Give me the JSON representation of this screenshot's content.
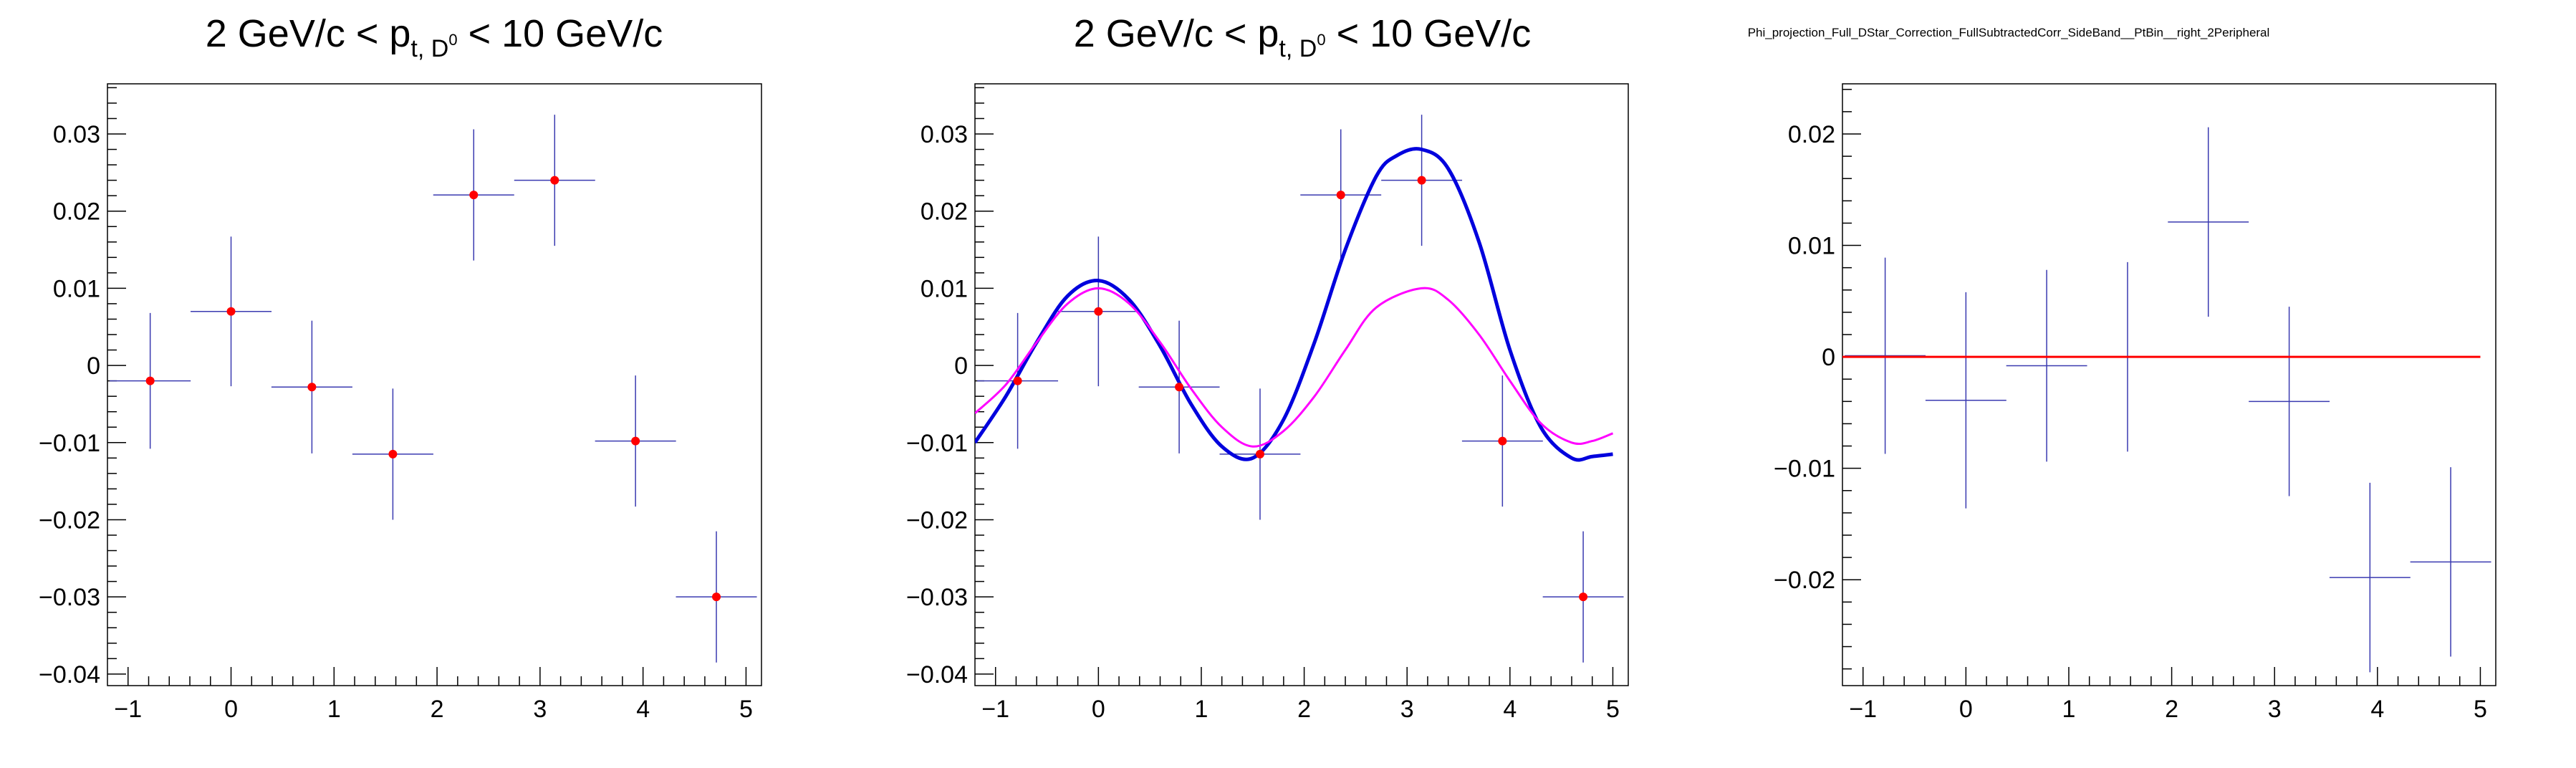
{
  "chart_data": [
    {
      "type": "scatter",
      "title": {
        "pre": "2 GeV/c < p",
        "sub": "t, D",
        "sup": "0",
        "post": " < 10 GeV/c"
      },
      "xlabel": "",
      "ylabel": "",
      "xlim": [
        -1.2,
        5.15
      ],
      "ylim": [
        -0.0415,
        0.0365
      ],
      "xticks": [
        -1,
        0,
        1,
        2,
        3,
        4,
        5
      ],
      "xtick_labels": [
        "−1",
        "0",
        "1",
        "2",
        "3",
        "4",
        "5"
      ],
      "yticks": [
        -0.04,
        -0.03,
        -0.02,
        -0.01,
        0,
        0.01,
        0.02,
        0.03
      ],
      "ytick_labels": [
        "−0.04",
        "−0.03",
        "−0.02",
        "−0.01",
        "0",
        "0.01",
        "0.02",
        "0.03"
      ],
      "grid": false,
      "marker_color": "#ff0000",
      "error_color": "#3a3ab0",
      "points": [
        {
          "x": -0.785,
          "y": -0.002,
          "xerr": 0.393,
          "yerr": 0.0088
        },
        {
          "x": 0.0,
          "y": 0.007,
          "xerr": 0.393,
          "yerr": 0.0097
        },
        {
          "x": 0.785,
          "y": -0.0028,
          "xerr": 0.393,
          "yerr": 0.0086
        },
        {
          "x": 1.571,
          "y": -0.0115,
          "xerr": 0.393,
          "yerr": 0.0085
        },
        {
          "x": 2.356,
          "y": 0.0221,
          "xerr": 0.393,
          "yerr": 0.0085
        },
        {
          "x": 3.142,
          "y": 0.024,
          "xerr": 0.393,
          "yerr": 0.0085
        },
        {
          "x": 3.927,
          "y": -0.0098,
          "xerr": 0.393,
          "yerr": 0.0085
        },
        {
          "x": 4.712,
          "y": -0.03,
          "xerr": 0.393,
          "yerr": 0.0085
        }
      ],
      "curves": []
    },
    {
      "type": "scatter",
      "title": {
        "pre": "2 GeV/c < p",
        "sub": "t, D",
        "sup": "0",
        "post": " < 10 GeV/c"
      },
      "xlabel": "",
      "ylabel": "",
      "xlim": [
        -1.2,
        5.15
      ],
      "ylim": [
        -0.0415,
        0.0365
      ],
      "xticks": [
        -1,
        0,
        1,
        2,
        3,
        4,
        5
      ],
      "xtick_labels": [
        "−1",
        "0",
        "1",
        "2",
        "3",
        "4",
        "5"
      ],
      "yticks": [
        -0.04,
        -0.03,
        -0.02,
        -0.01,
        0,
        0.01,
        0.02,
        0.03
      ],
      "ytick_labels": [
        "−0.04",
        "−0.03",
        "−0.02",
        "−0.01",
        "0",
        "0.01",
        "0.02",
        "0.03"
      ],
      "grid": false,
      "marker_color": "#ff0000",
      "error_color": "#3a3ab0",
      "points": [
        {
          "x": -0.785,
          "y": -0.002,
          "xerr": 0.393,
          "yerr": 0.0088
        },
        {
          "x": 0.0,
          "y": 0.007,
          "xerr": 0.393,
          "yerr": 0.0097
        },
        {
          "x": 0.785,
          "y": -0.0028,
          "xerr": 0.393,
          "yerr": 0.0086
        },
        {
          "x": 1.571,
          "y": -0.0115,
          "xerr": 0.393,
          "yerr": 0.0085
        },
        {
          "x": 2.356,
          "y": 0.0221,
          "xerr": 0.393,
          "yerr": 0.0085
        },
        {
          "x": 3.142,
          "y": 0.024,
          "xerr": 0.393,
          "yerr": 0.0085
        },
        {
          "x": 3.927,
          "y": -0.0098,
          "xerr": 0.393,
          "yerr": 0.0085
        },
        {
          "x": 4.712,
          "y": -0.03,
          "xerr": 0.393,
          "yerr": 0.0085
        }
      ],
      "curves": [
        {
          "color": "#0000dd",
          "x_range": [
            -1.2,
            5.0
          ],
          "points": [
            [
              -1.2,
              -0.01
            ],
            [
              -0.9,
              -0.004
            ],
            [
              -0.6,
              0.003
            ],
            [
              -0.3,
              0.009
            ],
            [
              0.0,
              0.011
            ],
            [
              0.3,
              0.0085
            ],
            [
              0.6,
              0.0025
            ],
            [
              0.9,
              -0.005
            ],
            [
              1.2,
              -0.0105
            ],
            [
              1.5,
              -0.012
            ],
            [
              1.8,
              -0.007
            ],
            [
              2.1,
              0.003
            ],
            [
              2.4,
              0.015
            ],
            [
              2.7,
              0.0245
            ],
            [
              2.9,
              0.0272
            ],
            [
              3.14,
              0.028
            ],
            [
              3.4,
              0.0255
            ],
            [
              3.7,
              0.016
            ],
            [
              4.0,
              0.002
            ],
            [
              4.3,
              -0.008
            ],
            [
              4.6,
              -0.012
            ],
            [
              4.8,
              -0.0118
            ],
            [
              5.0,
              -0.0115
            ]
          ]
        },
        {
          "color": "#ff00ff",
          "x_range": [
            -1.2,
            5.0
          ],
          "points": [
            [
              -1.2,
              -0.0062
            ],
            [
              -0.9,
              -0.0025
            ],
            [
              -0.6,
              0.003
            ],
            [
              -0.3,
              0.008
            ],
            [
              0.0,
              0.01
            ],
            [
              0.3,
              0.008
            ],
            [
              0.6,
              0.003
            ],
            [
              0.9,
              -0.003
            ],
            [
              1.2,
              -0.008
            ],
            [
              1.5,
              -0.0105
            ],
            [
              1.8,
              -0.0085
            ],
            [
              2.1,
              -0.004
            ],
            [
              2.4,
              0.002
            ],
            [
              2.7,
              0.0075
            ],
            [
              3.14,
              0.01
            ],
            [
              3.4,
              0.0085
            ],
            [
              3.7,
              0.004
            ],
            [
              4.0,
              -0.002
            ],
            [
              4.3,
              -0.0075
            ],
            [
              4.6,
              -0.01
            ],
            [
              4.8,
              -0.0098
            ],
            [
              5.0,
              -0.0088
            ]
          ]
        }
      ]
    },
    {
      "type": "scatter",
      "title": {
        "pre": "Phi_projection_Full_DStar_Correction_FullSubtractedCorr_SideBand__PtBin__right_2Peripheral",
        "sub": "",
        "sup": "",
        "post": ""
      },
      "xlabel": "",
      "ylabel": "",
      "xlim": [
        -1.2,
        5.15
      ],
      "ylim": [
        -0.0295,
        0.0245
      ],
      "xticks": [
        -1,
        0,
        1,
        2,
        3,
        4,
        5
      ],
      "xtick_labels": [
        "−1",
        "0",
        "1",
        "2",
        "3",
        "4",
        "5"
      ],
      "yticks": [
        -0.02,
        -0.01,
        0,
        0.01,
        0.02
      ],
      "ytick_labels": [
        "−0.02",
        "−0.01",
        "0",
        "0.01",
        "0.02"
      ],
      "grid": false,
      "marker_color": "",
      "error_color": "#3a3ab0",
      "points": [
        {
          "x": -0.785,
          "y": 0.0001,
          "xerr": 0.393,
          "yerr": 0.0088
        },
        {
          "x": 0.0,
          "y": -0.0039,
          "xerr": 0.393,
          "yerr": 0.0097
        },
        {
          "x": 0.785,
          "y": -0.0008,
          "xerr": 0.393,
          "yerr": 0.0086
        },
        {
          "x": 1.571,
          "y": 0.0,
          "xerr": 0.393,
          "yerr": 0.0085
        },
        {
          "x": 2.356,
          "y": 0.0121,
          "xerr": 0.393,
          "yerr": 0.0085
        },
        {
          "x": 3.142,
          "y": -0.004,
          "xerr": 0.393,
          "yerr": 0.0085
        },
        {
          "x": 3.927,
          "y": -0.0198,
          "xerr": 0.393,
          "yerr": 0.0085
        },
        {
          "x": 4.712,
          "y": -0.0184,
          "xerr": 0.393,
          "yerr": 0.0085
        }
      ],
      "curves": [
        {
          "color": "#ff0000",
          "x_range": [
            -1.2,
            5.0
          ],
          "points": [
            [
              -1.2,
              0.0
            ],
            [
              5.0,
              0.0
            ]
          ]
        }
      ]
    }
  ]
}
